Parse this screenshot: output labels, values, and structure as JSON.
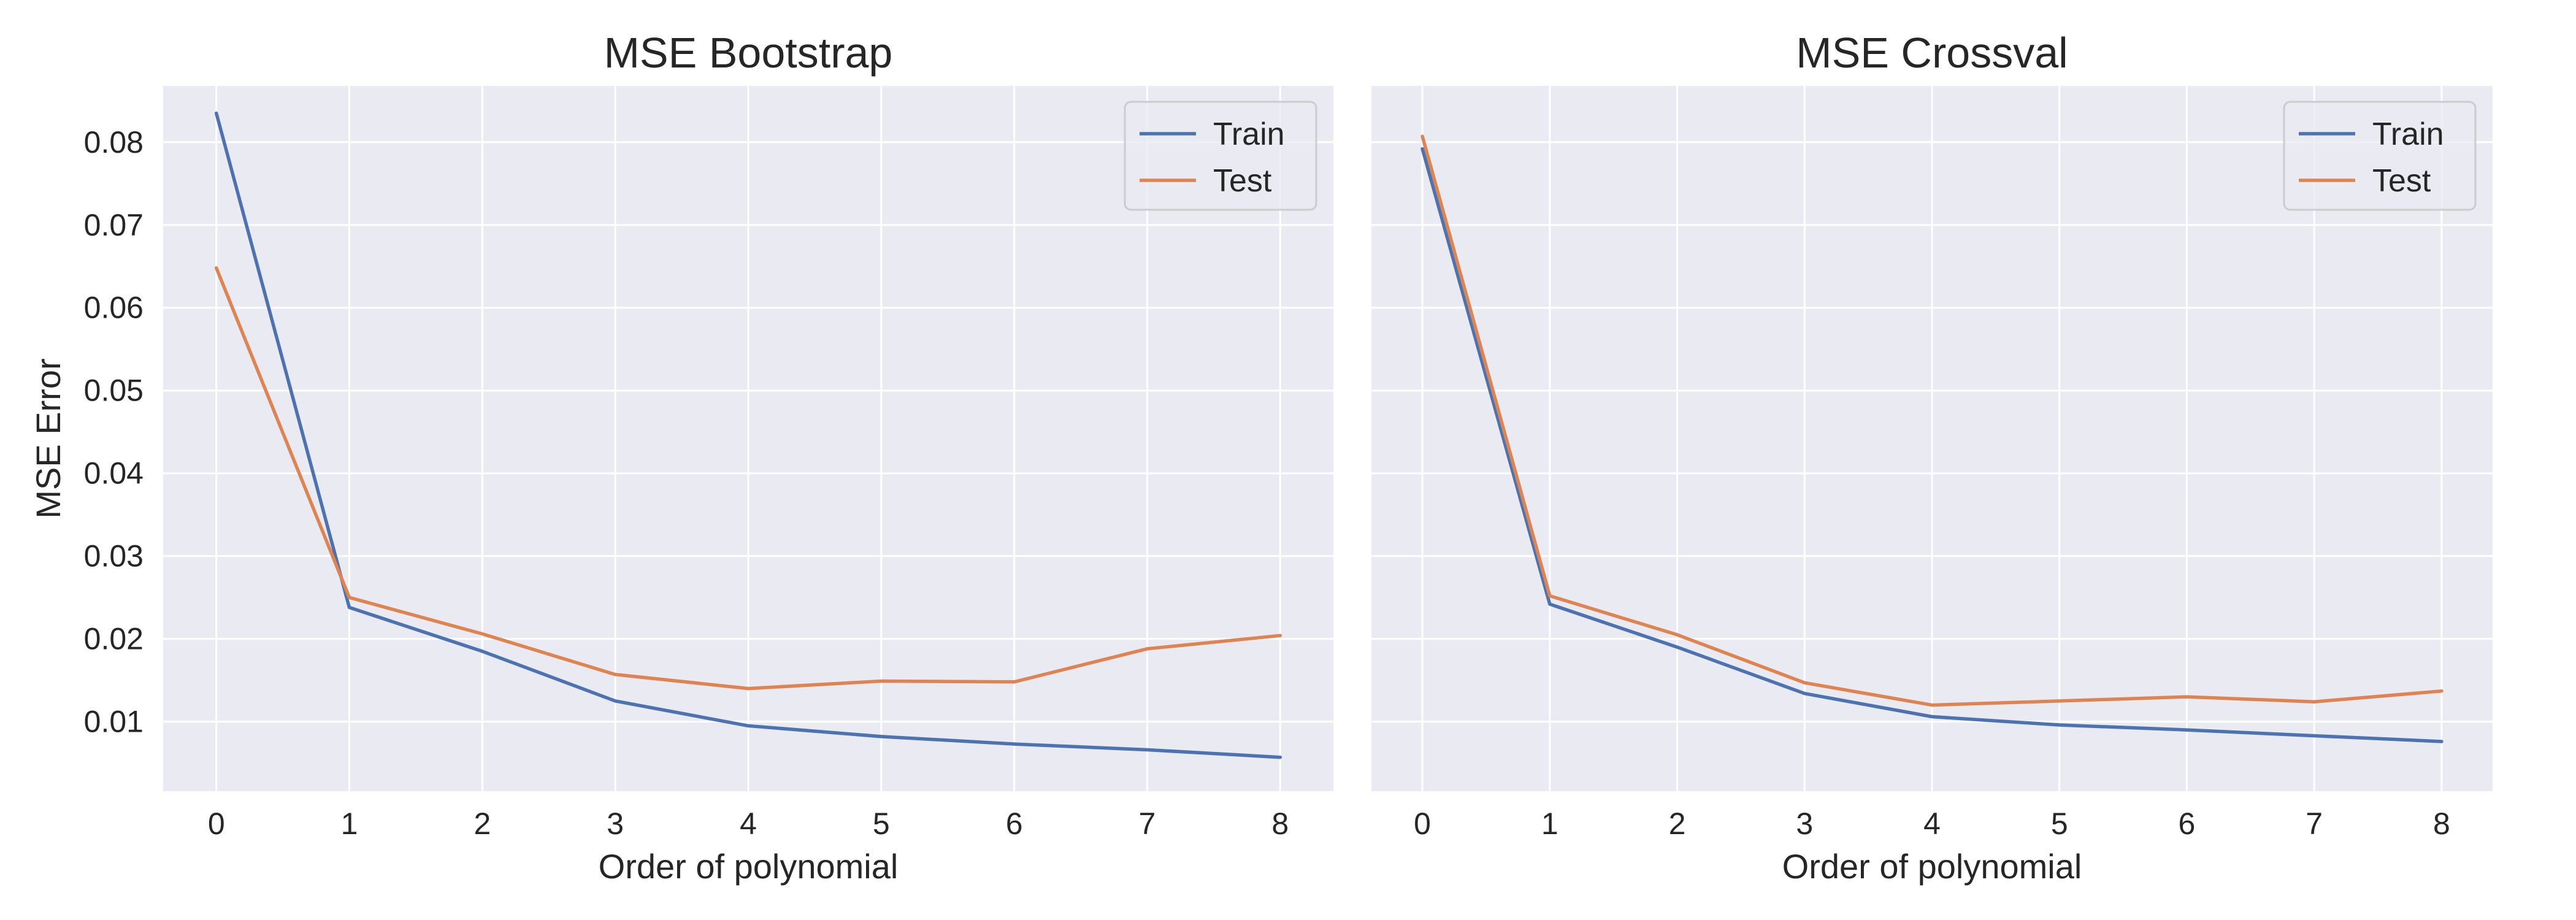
{
  "chart_data": [
    {
      "type": "line",
      "title": "MSE Bootstrap",
      "xlabel": "Order of polynomial",
      "ylabel": "MSE Error",
      "x": [
        0,
        1,
        2,
        3,
        4,
        5,
        6,
        7,
        8
      ],
      "xticks": [
        "0",
        "1",
        "2",
        "3",
        "4",
        "5",
        "6",
        "7",
        "8"
      ],
      "yticks": [
        "0.01",
        "0.02",
        "0.03",
        "0.04",
        "0.05",
        "0.06",
        "0.07",
        "0.08"
      ],
      "xlim": [
        -0.4,
        8.4
      ],
      "ylim": [
        0.0016,
        0.0868
      ],
      "grid": true,
      "legend": "top-right",
      "series": [
        {
          "name": "Train",
          "color": "#4c72b0",
          "values": [
            0.0835,
            0.0238,
            0.0185,
            0.0125,
            0.0095,
            0.0082,
            0.0073,
            0.0066,
            0.0057
          ]
        },
        {
          "name": "Test",
          "color": "#dd8452",
          "values": [
            0.0648,
            0.025,
            0.0206,
            0.0157,
            0.014,
            0.0149,
            0.0148,
            0.0188,
            0.0204
          ]
        }
      ]
    },
    {
      "type": "line",
      "title": "MSE Crossval",
      "xlabel": "Order of polynomial",
      "ylabel": "",
      "x": [
        0,
        1,
        2,
        3,
        4,
        5,
        6,
        7,
        8
      ],
      "xticks": [
        "0",
        "1",
        "2",
        "3",
        "4",
        "5",
        "6",
        "7",
        "8"
      ],
      "yticks": [],
      "xlim": [
        -0.4,
        8.4
      ],
      "ylim": [
        0.0016,
        0.0868
      ],
      "grid": true,
      "legend": "top-right",
      "series": [
        {
          "name": "Train",
          "color": "#4c72b0",
          "values": [
            0.0792,
            0.0242,
            0.019,
            0.0134,
            0.0106,
            0.0096,
            0.009,
            0.0083,
            0.0076
          ]
        },
        {
          "name": "Test",
          "color": "#dd8452",
          "values": [
            0.0807,
            0.0252,
            0.0205,
            0.0147,
            0.012,
            0.0125,
            0.013,
            0.0124,
            0.0137
          ]
        }
      ]
    }
  ]
}
